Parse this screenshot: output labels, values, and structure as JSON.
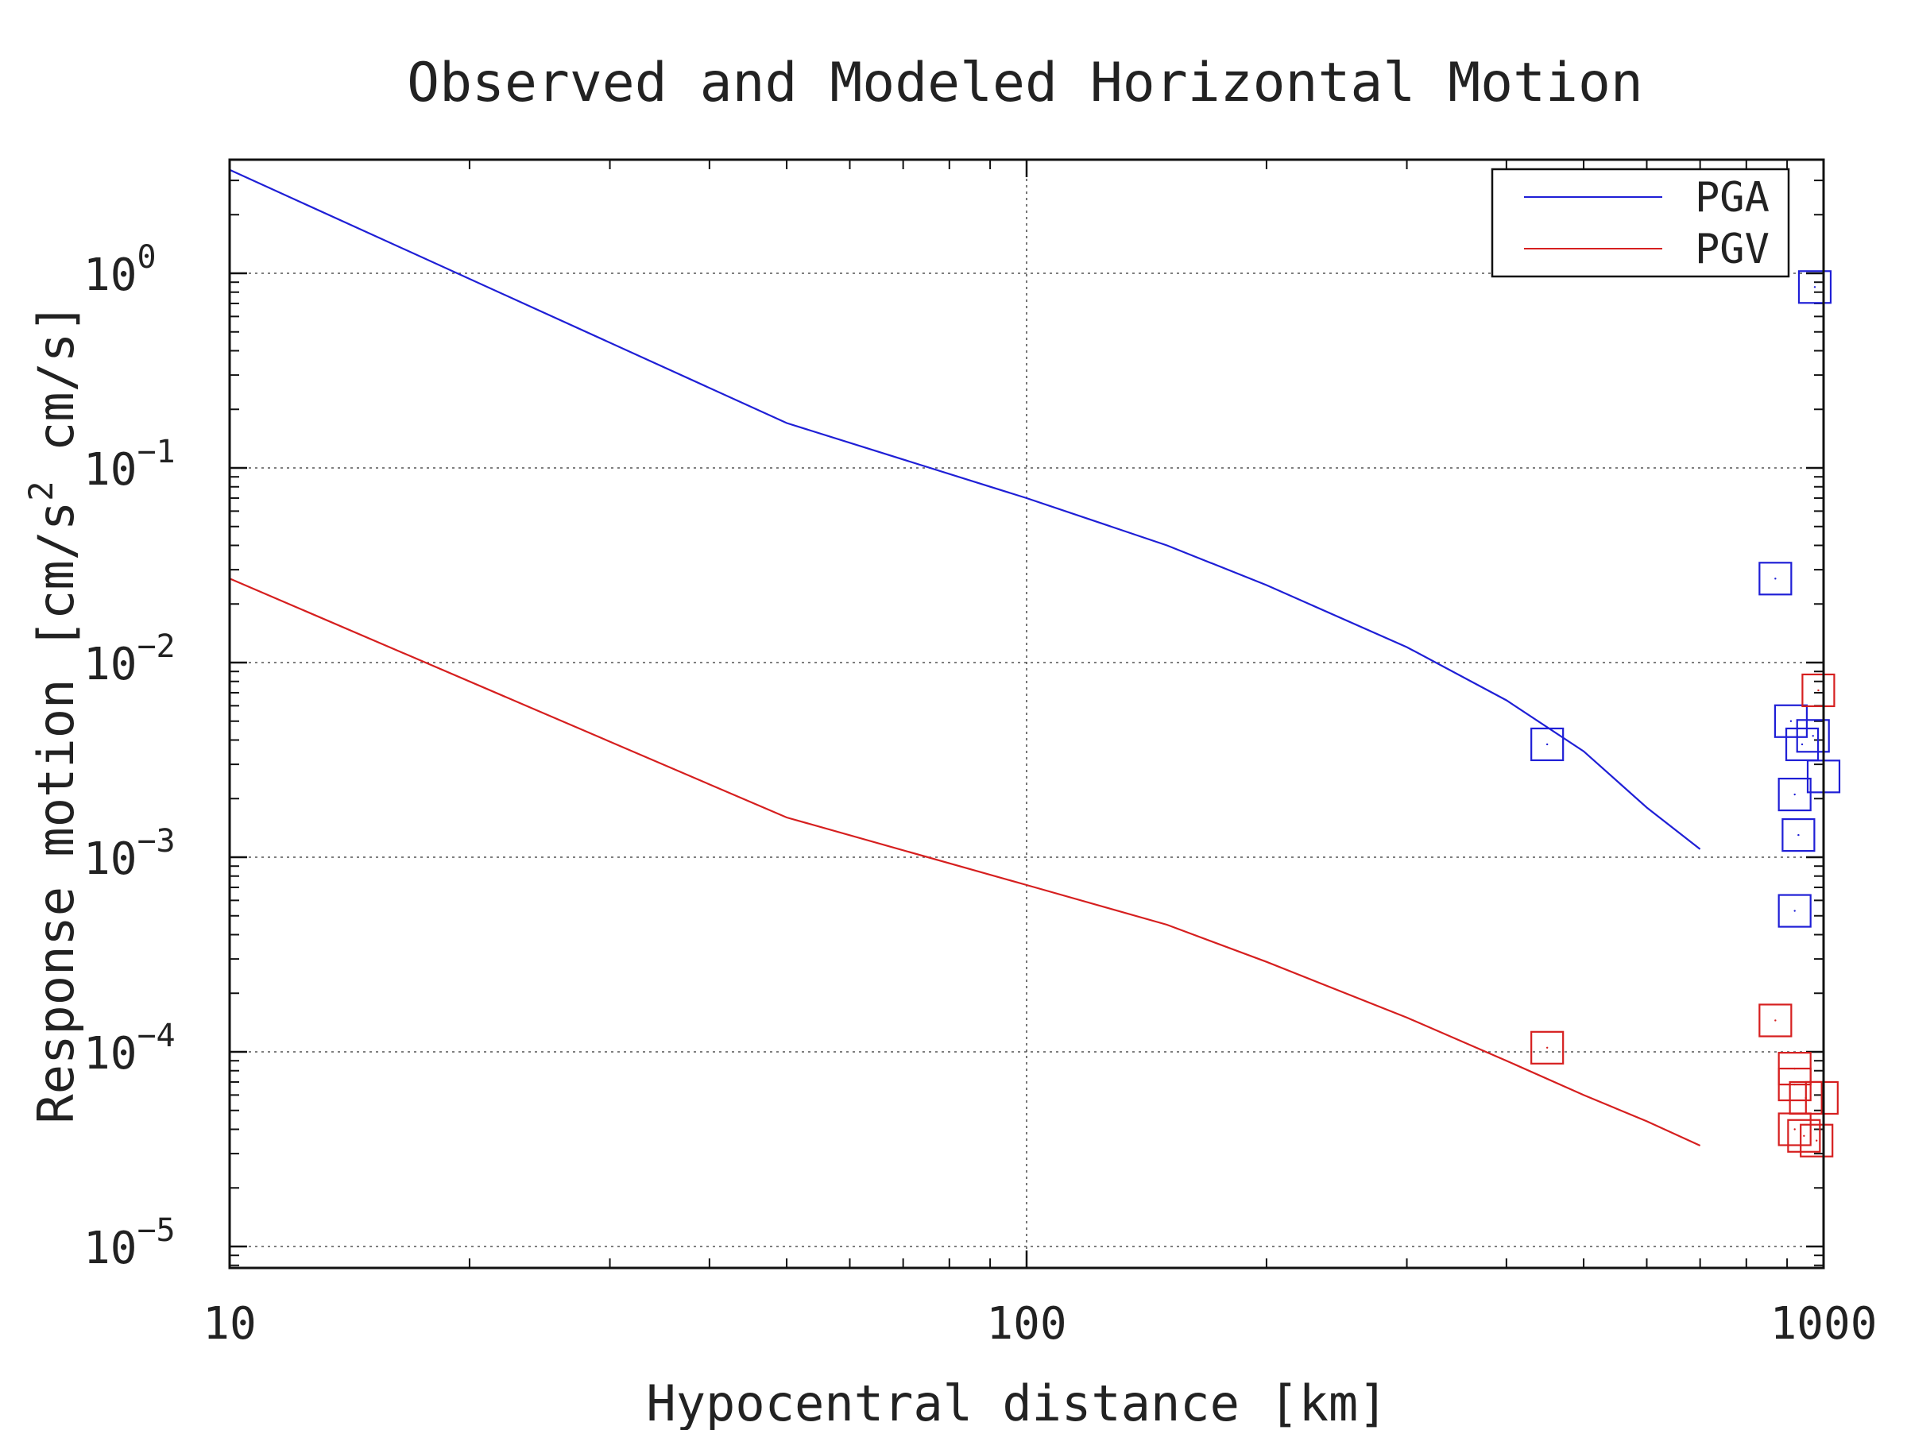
{
  "chart_data": {
    "type": "line",
    "title": "Observed and Modeled Horizontal Motion",
    "xlabel": "Hypocentral distance [km]",
    "ylabel_parts": [
      "Response motion [cm/s",
      "2",
      " cm/s]"
    ],
    "x_scale": "log",
    "y_scale": "log",
    "xlim": [
      10,
      1000
    ],
    "ylim": [
      5e-06,
      4
    ],
    "grid": true,
    "legend_position": "top-right",
    "x_ticks": [
      {
        "value": 10,
        "label": "10"
      },
      {
        "value": 100,
        "label": "100"
      },
      {
        "value": 1000,
        "label": "1000"
      }
    ],
    "y_ticks": [
      {
        "value": 1,
        "base": "10",
        "exp": "0"
      },
      {
        "value": 0.1,
        "base": "10",
        "exp": "−1"
      },
      {
        "value": 0.01,
        "base": "10",
        "exp": "−2"
      },
      {
        "value": 0.001,
        "base": "10",
        "exp": "−3"
      },
      {
        "value": 0.0001,
        "base": "10",
        "exp": "−4"
      },
      {
        "value": 1e-05,
        "base": "10",
        "exp": "−5"
      }
    ],
    "series": [
      {
        "name": "PGA",
        "color": "#1f1fd6",
        "model": [
          [
            10,
            3.4
          ],
          [
            50,
            0.17
          ],
          [
            100,
            0.07
          ],
          [
            150,
            0.04
          ],
          [
            200,
            0.025
          ],
          [
            300,
            0.012
          ],
          [
            400,
            0.0064
          ],
          [
            500,
            0.0035
          ],
          [
            600,
            0.0018
          ],
          [
            700,
            0.0011
          ]
        ],
        "observed": [
          [
            450,
            0.0038
          ],
          [
            870,
            0.027
          ],
          [
            910,
            0.005
          ],
          [
            940,
            0.0038
          ],
          [
            970,
            0.0042
          ],
          [
            1000,
            0.0026
          ],
          [
            920,
            0.0021
          ],
          [
            930,
            0.0013
          ],
          [
            920,
            0.00053
          ],
          [
            975,
            0.85
          ]
        ]
      },
      {
        "name": "PGV",
        "color": "#d61f1f",
        "model": [
          [
            10,
            0.027
          ],
          [
            50,
            0.0016
          ],
          [
            100,
            0.00072
          ],
          [
            150,
            0.00045
          ],
          [
            200,
            0.00029
          ],
          [
            300,
            0.00015
          ],
          [
            400,
            9e-05
          ],
          [
            500,
            6e-05
          ],
          [
            600,
            4.4e-05
          ],
          [
            700,
            3.3e-05
          ]
        ],
        "observed": [
          [
            450,
            0.000105
          ],
          [
            870,
            0.000145
          ],
          [
            920,
            8.2e-05
          ],
          [
            920,
            6.8e-05
          ],
          [
            950,
            5.8e-05
          ],
          [
            995,
            5.8e-05
          ],
          [
            920,
            4e-05
          ],
          [
            945,
            3.7e-05
          ],
          [
            980,
            3.5e-05
          ],
          [
            985,
            0.0072
          ]
        ]
      }
    ]
  }
}
